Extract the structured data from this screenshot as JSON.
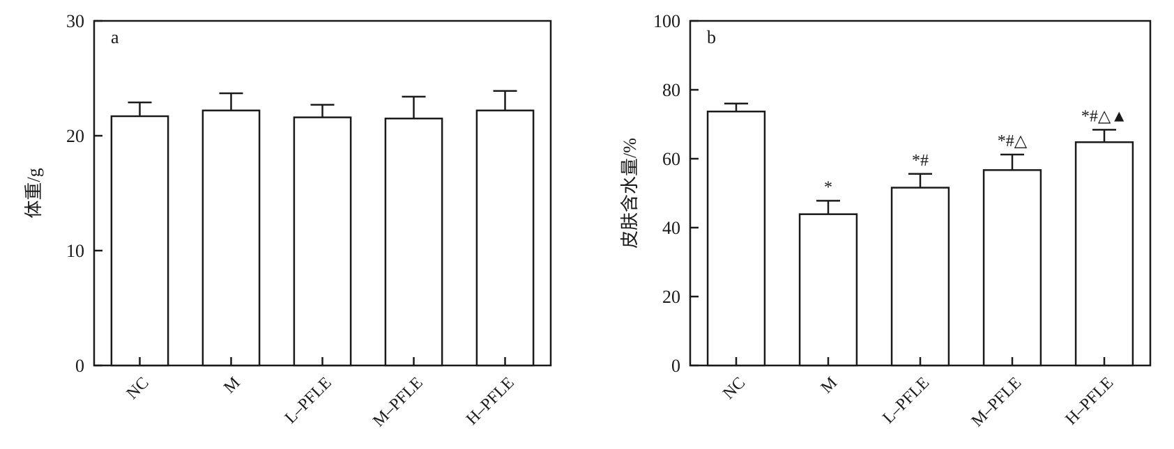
{
  "chart_data": [
    {
      "type": "bar",
      "panel_label": "a",
      "ylabel": "体重/g",
      "xlabel": "",
      "ylim": [
        0,
        30
      ],
      "yticks": [
        0,
        10,
        20,
        30
      ],
      "categories": [
        "NC",
        "M",
        "L–PFLE",
        "M–PFLE",
        "H–PFLE"
      ],
      "series": [
        {
          "values": [
            21.7,
            22.2,
            21.6,
            21.5,
            22.2
          ],
          "errors": [
            1.2,
            1.5,
            1.1,
            1.9,
            1.7
          ]
        }
      ],
      "annotations": [
        "",
        "",
        "",
        "",
        ""
      ],
      "grid": false,
      "legend": "none"
    },
    {
      "type": "bar",
      "panel_label": "b",
      "ylabel": "皮肤含水量/%",
      "xlabel": "",
      "ylim": [
        0,
        100
      ],
      "yticks": [
        0,
        20,
        40,
        60,
        80,
        100
      ],
      "categories": [
        "NC",
        "M",
        "L–PFLE",
        "M–PFLE",
        "H–PFLE"
      ],
      "series": [
        {
          "values": [
            73.7,
            43.9,
            51.6,
            56.7,
            64.8
          ],
          "errors": [
            2.3,
            3.9,
            4.0,
            4.5,
            3.6
          ]
        }
      ],
      "annotations": [
        "",
        "*",
        "*#",
        "*#△",
        "*#△▲"
      ],
      "grid": false,
      "legend": "none"
    }
  ]
}
